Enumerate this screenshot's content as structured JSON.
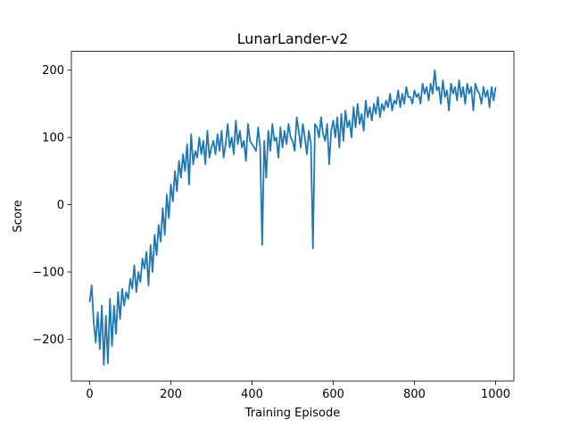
{
  "chart_data": {
    "type": "line",
    "title": "LunarLander-v2",
    "xlabel": "Training Episode",
    "ylabel": "Score",
    "xlim": [
      -45,
      1045
    ],
    "ylim": [
      -262,
      228
    ],
    "xticks": [
      0,
      200,
      400,
      600,
      800,
      1000
    ],
    "yticks": [
      -200,
      -100,
      0,
      100,
      200
    ],
    "xtick_labels": [
      "0",
      "200",
      "400",
      "600",
      "800",
      "1000"
    ],
    "ytick_labels": [
      "−200",
      "−100",
      "0",
      "100",
      "200"
    ],
    "grid": false,
    "series": [
      {
        "color": "#1f77b4",
        "x": [
          0,
          5,
          10,
          15,
          20,
          25,
          30,
          35,
          40,
          45,
          50,
          55,
          60,
          65,
          70,
          75,
          80,
          85,
          90,
          95,
          100,
          105,
          110,
          115,
          120,
          125,
          130,
          135,
          140,
          145,
          150,
          155,
          160,
          165,
          170,
          175,
          180,
          185,
          190,
          195,
          200,
          205,
          210,
          215,
          220,
          225,
          230,
          235,
          240,
          245,
          250,
          255,
          260,
          265,
          270,
          275,
          280,
          285,
          290,
          295,
          300,
          305,
          310,
          315,
          320,
          325,
          330,
          335,
          340,
          345,
          350,
          355,
          360,
          365,
          370,
          375,
          380,
          385,
          390,
          395,
          400,
          405,
          410,
          415,
          420,
          425,
          430,
          435,
          440,
          445,
          450,
          455,
          460,
          465,
          470,
          475,
          480,
          485,
          490,
          495,
          500,
          505,
          510,
          515,
          520,
          525,
          530,
          535,
          540,
          545,
          550,
          555,
          560,
          565,
          570,
          575,
          580,
          585,
          590,
          595,
          600,
          605,
          610,
          615,
          620,
          625,
          630,
          635,
          640,
          645,
          650,
          655,
          660,
          665,
          670,
          675,
          680,
          685,
          690,
          695,
          700,
          705,
          710,
          715,
          720,
          725,
          730,
          735,
          740,
          745,
          750,
          755,
          760,
          765,
          770,
          775,
          780,
          785,
          790,
          795,
          800,
          805,
          810,
          815,
          820,
          825,
          830,
          835,
          840,
          845,
          850,
          855,
          860,
          865,
          870,
          875,
          880,
          885,
          890,
          895,
          900,
          905,
          910,
          915,
          920,
          925,
          930,
          935,
          940,
          945,
          950,
          955,
          960,
          965,
          970,
          975,
          980,
          985,
          990,
          995,
          1000
        ],
        "y": [
          -145,
          -120,
          -175,
          -205,
          -160,
          -215,
          -150,
          -238,
          -165,
          -236,
          -140,
          -210,
          -150,
          -192,
          -130,
          -170,
          -125,
          -150,
          -130,
          -140,
          -110,
          -125,
          -90,
          -130,
          -100,
          -115,
          -80,
          -95,
          -70,
          -120,
          -60,
          -100,
          -45,
          -75,
          -30,
          -55,
          -5,
          -45,
          15,
          -20,
          30,
          5,
          50,
          20,
          65,
          40,
          75,
          50,
          90,
          30,
          105,
          60,
          80,
          70,
          100,
          75,
          95,
          60,
          110,
          70,
          85,
          95,
          75,
          105,
          80,
          110,
          70,
          90,
          120,
          85,
          100,
          75,
          125,
          90,
          110,
          85,
          95,
          65,
          120,
          95,
          90,
          85,
          80,
          115,
          85,
          -60,
          95,
          40,
          110,
          80,
          120,
          95,
          100,
          70,
          115,
          85,
          110,
          90,
          120,
          100,
          95,
          80,
          130,
          110,
          85,
          120,
          100,
          75,
          110,
          90,
          -65,
          120,
          115,
          100,
          130,
          105,
          95,
          120,
          60,
          110,
          125,
          100,
          130,
          85,
          135,
          95,
          140,
          115,
          125,
          100,
          145,
          115,
          150,
          120,
          135,
          110,
          155,
          130,
          145,
          125,
          150,
          135,
          160,
          130,
          150,
          140,
          155,
          145,
          165,
          140,
          155,
          150,
          170,
          145,
          165,
          150,
          175,
          160,
          160,
          150,
          170,
          160,
          165,
          150,
          180,
          165,
          175,
          155,
          180,
          165,
          200,
          170,
          175,
          150,
          185,
          160,
          170,
          140,
          180,
          165,
          175,
          155,
          185,
          160,
          175,
          150,
          180,
          165,
          175,
          140,
          180,
          170,
          165,
          150,
          175,
          160,
          170,
          145,
          175,
          155,
          175
        ]
      }
    ]
  }
}
